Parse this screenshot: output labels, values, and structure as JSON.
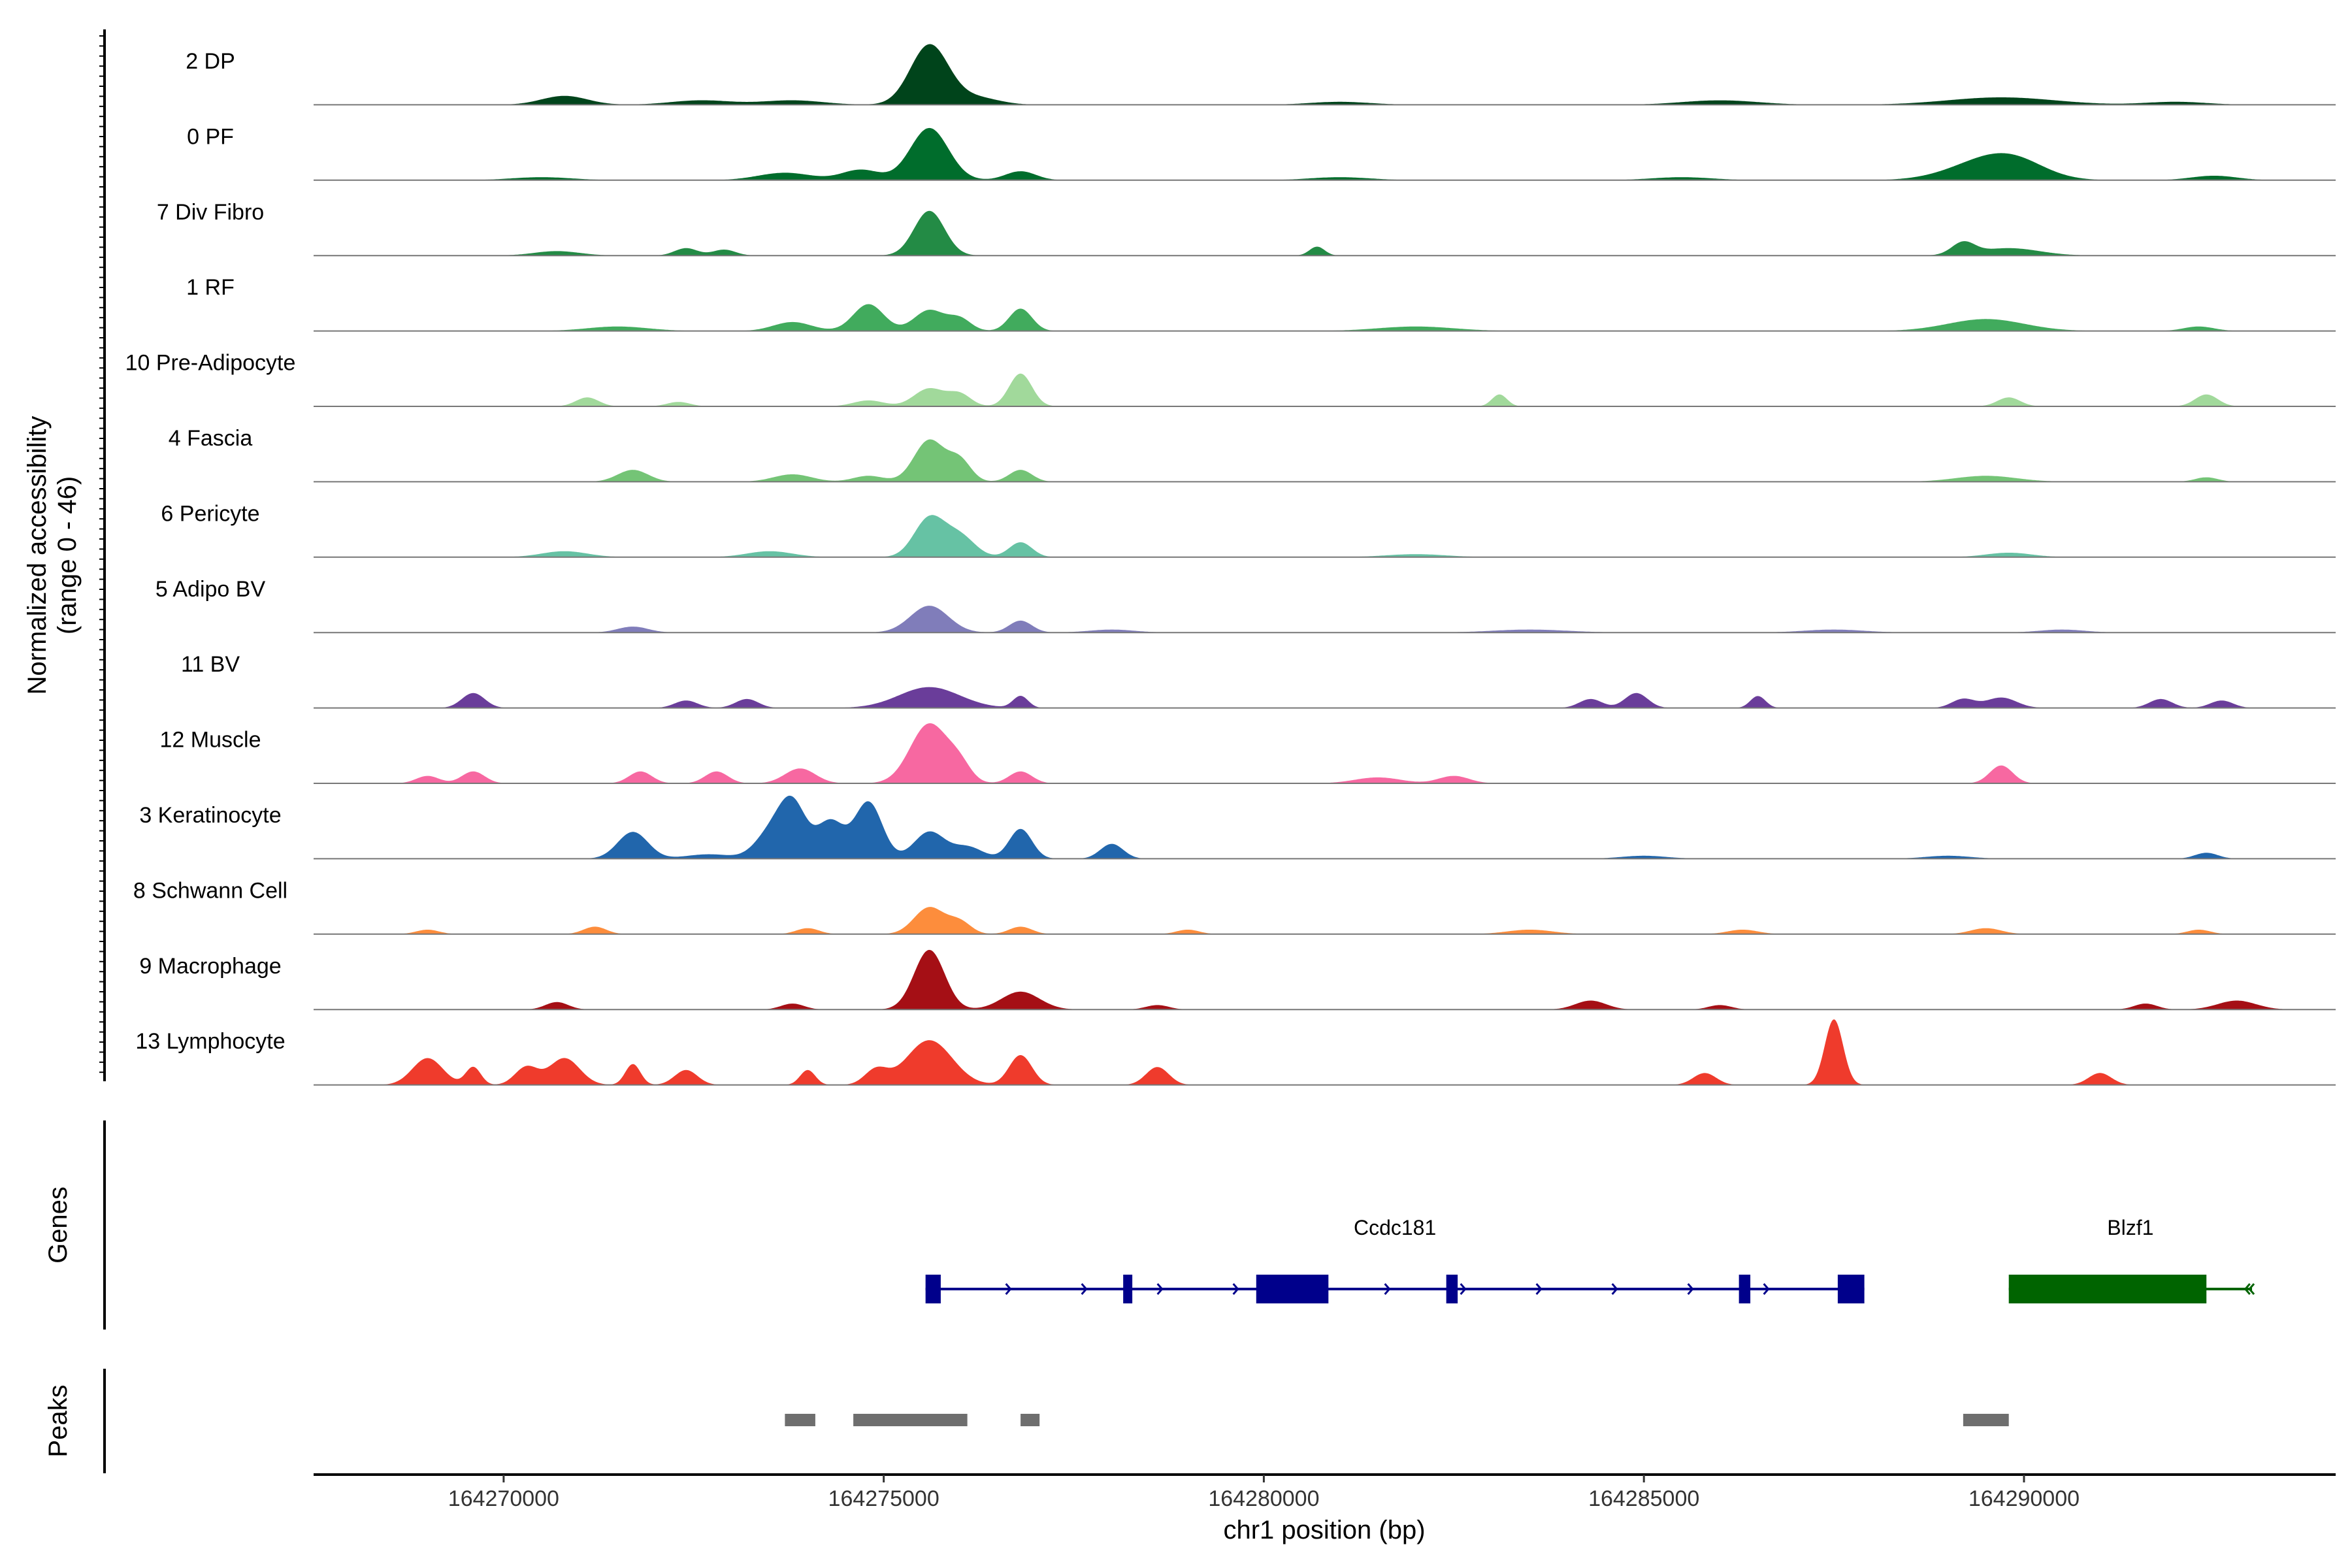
{
  "chart_data": {
    "type": "area",
    "title": "",
    "region": "chr1:164267500-164294100",
    "xlabel": "chr1 position (bp)",
    "ylabel": "Normalized accessibility",
    "ylabel_range": "(range 0 - 46)",
    "ylim": [
      0,
      46
    ],
    "xlim": [
      164267500,
      164294100
    ],
    "x_ticks": [
      164270000,
      164275000,
      164280000,
      164285000,
      164290000
    ],
    "x_tick_labels": [
      "164270000",
      "164275000",
      "164280000",
      "164285000",
      "164290000"
    ],
    "series": [
      {
        "name": "2 DP",
        "color": "#00441b",
        "peaks": [
          [
            164270800,
            6,
            300
          ],
          [
            164272600,
            3,
            400
          ],
          [
            164273800,
            3,
            400
          ],
          [
            164275600,
            40,
            250
          ],
          [
            164276200,
            5,
            300
          ],
          [
            164281000,
            2,
            400
          ],
          [
            164286000,
            3,
            500
          ],
          [
            164289700,
            5,
            700
          ],
          [
            164292000,
            2,
            400
          ]
        ]
      },
      {
        "name": "0 PF",
        "color": "#006d2c",
        "peaks": [
          [
            164270500,
            2,
            400
          ],
          [
            164273700,
            5,
            350
          ],
          [
            164274700,
            7,
            250
          ],
          [
            164275600,
            35,
            250
          ],
          [
            164276800,
            6,
            200
          ],
          [
            164281000,
            2,
            400
          ],
          [
            164285500,
            2,
            400
          ],
          [
            164289500,
            12,
            500
          ],
          [
            164289900,
            8,
            400
          ],
          [
            164292500,
            3,
            300
          ]
        ]
      },
      {
        "name": "7 Div Fibro",
        "color": "#238b45",
        "peaks": [
          [
            164270700,
            3,
            300
          ],
          [
            164272400,
            5,
            150
          ],
          [
            164272900,
            4,
            150
          ],
          [
            164275600,
            30,
            200
          ],
          [
            164280700,
            6,
            100
          ],
          [
            164289200,
            8,
            150
          ],
          [
            164289800,
            5,
            400
          ]
        ]
      },
      {
        "name": "1 RF",
        "color": "#41ab5d",
        "peaks": [
          [
            164271500,
            3,
            400
          ],
          [
            164273800,
            6,
            250
          ],
          [
            164274800,
            18,
            200
          ],
          [
            164275600,
            14,
            200
          ],
          [
            164276000,
            8,
            150
          ],
          [
            164276800,
            15,
            150
          ],
          [
            164282000,
            3,
            500
          ],
          [
            164289500,
            8,
            500
          ],
          [
            164292300,
            3,
            200
          ]
        ]
      },
      {
        "name": "10 Pre-Adipocyte",
        "color": "#a1d99b",
        "peaks": [
          [
            164271100,
            6,
            150
          ],
          [
            164272300,
            3,
            150
          ],
          [
            164274800,
            4,
            200
          ],
          [
            164275600,
            12,
            200
          ],
          [
            164276000,
            8,
            150
          ],
          [
            164276800,
            22,
            150
          ],
          [
            164283100,
            8,
            100
          ],
          [
            164289800,
            6,
            150
          ],
          [
            164292400,
            8,
            150
          ]
        ]
      },
      {
        "name": "4 Fascia",
        "color": "#74c476",
        "peaks": [
          [
            164271700,
            8,
            200
          ],
          [
            164273800,
            5,
            250
          ],
          [
            164274800,
            4,
            200
          ],
          [
            164275600,
            28,
            200
          ],
          [
            164276000,
            14,
            150
          ],
          [
            164276800,
            8,
            150
          ],
          [
            164289500,
            4,
            400
          ],
          [
            164292400,
            3,
            150
          ]
        ]
      },
      {
        "name": "6 Pericyte",
        "color": "#66c2a4",
        "peaks": [
          [
            164270800,
            4,
            300
          ],
          [
            164273500,
            4,
            300
          ],
          [
            164275600,
            26,
            200
          ],
          [
            164276000,
            14,
            200
          ],
          [
            164276800,
            10,
            150
          ],
          [
            164282000,
            2,
            400
          ],
          [
            164289800,
            3,
            300
          ]
        ]
      },
      {
        "name": "5 Adipo BV",
        "color": "#807dba",
        "peaks": [
          [
            164271700,
            4,
            200
          ],
          [
            164275600,
            18,
            250
          ],
          [
            164276800,
            8,
            150
          ],
          [
            164278000,
            2,
            300
          ],
          [
            164283500,
            2,
            500
          ],
          [
            164287500,
            2,
            400
          ],
          [
            164290500,
            2,
            300
          ]
        ]
      },
      {
        "name": "11 BV",
        "color": "#6a3d9a",
        "peaks": [
          [
            164269600,
            10,
            150
          ],
          [
            164272400,
            5,
            150
          ],
          [
            164273200,
            6,
            150
          ],
          [
            164275600,
            14,
            400
          ],
          [
            164276800,
            8,
            100
          ],
          [
            164284300,
            6,
            150
          ],
          [
            164284900,
            10,
            150
          ],
          [
            164286500,
            8,
            100
          ],
          [
            164289200,
            6,
            150
          ],
          [
            164289700,
            7,
            200
          ],
          [
            164291800,
            6,
            150
          ],
          [
            164292600,
            5,
            150
          ]
        ]
      },
      {
        "name": "12 Muscle",
        "color": "#f768a1",
        "peaks": [
          [
            164269000,
            5,
            150
          ],
          [
            164269600,
            8,
            150
          ],
          [
            164271800,
            8,
            150
          ],
          [
            164272800,
            8,
            150
          ],
          [
            164273900,
            10,
            200
          ],
          [
            164275600,
            40,
            250
          ],
          [
            164276000,
            10,
            150
          ],
          [
            164276800,
            8,
            150
          ],
          [
            164281500,
            4,
            300
          ],
          [
            164282500,
            5,
            200
          ],
          [
            164289700,
            12,
            150
          ]
        ]
      },
      {
        "name": "3 Keratinocyte",
        "color": "#2166ac",
        "peaks": [
          [
            164271700,
            18,
            200
          ],
          [
            164272700,
            3,
            300
          ],
          [
            164273500,
            16,
            200
          ],
          [
            164273800,
            36,
            180
          ],
          [
            164274300,
            25,
            180
          ],
          [
            164274800,
            38,
            180
          ],
          [
            164275600,
            18,
            200
          ],
          [
            164276100,
            8,
            200
          ],
          [
            164276800,
            20,
            150
          ],
          [
            164278000,
            10,
            150
          ],
          [
            164285000,
            2,
            300
          ],
          [
            164289000,
            2,
            300
          ],
          [
            164292400,
            4,
            150
          ]
        ]
      },
      {
        "name": "8 Schwann Cell",
        "color": "#fd8d3c",
        "peaks": [
          [
            164269000,
            3,
            150
          ],
          [
            164271200,
            5,
            150
          ],
          [
            164274000,
            4,
            150
          ],
          [
            164275600,
            18,
            200
          ],
          [
            164276000,
            8,
            150
          ],
          [
            164276800,
            5,
            150
          ],
          [
            164279000,
            3,
            150
          ],
          [
            164283500,
            3,
            300
          ],
          [
            164286300,
            3,
            200
          ],
          [
            164289500,
            4,
            200
          ],
          [
            164292300,
            3,
            150
          ]
        ]
      },
      {
        "name": "9 Macrophage",
        "color": "#a50f15",
        "peaks": [
          [
            164270700,
            5,
            150
          ],
          [
            164273800,
            4,
            150
          ],
          [
            164275600,
            40,
            200
          ],
          [
            164276800,
            12,
            250
          ],
          [
            164278600,
            3,
            150
          ],
          [
            164284300,
            6,
            200
          ],
          [
            164286000,
            3,
            150
          ],
          [
            164291600,
            4,
            150
          ],
          [
            164292800,
            6,
            250
          ]
        ]
      },
      {
        "name": "13 Lymphocyte",
        "color": "#ef3b2c",
        "peaks": [
          [
            164269000,
            18,
            200
          ],
          [
            164269600,
            12,
            100
          ],
          [
            164270300,
            12,
            150
          ],
          [
            164270800,
            18,
            200
          ],
          [
            164271700,
            14,
            100
          ],
          [
            164272400,
            10,
            150
          ],
          [
            164274000,
            10,
            100
          ],
          [
            164274900,
            10,
            150
          ],
          [
            164275600,
            30,
            300
          ],
          [
            164276800,
            20,
            150
          ],
          [
            164278600,
            12,
            150
          ],
          [
            164285800,
            8,
            150
          ],
          [
            164287500,
            44,
            120
          ],
          [
            164291000,
            8,
            150
          ]
        ]
      }
    ],
    "genes": [
      {
        "name": "Ccdc181",
        "start": 164275550,
        "end": 164287900,
        "strand": "+",
        "color": "#00008b",
        "exons": [
          [
            164275550,
            164275750
          ],
          [
            164278150,
            164278270
          ],
          [
            164279900,
            164280850
          ],
          [
            164282400,
            164282550
          ],
          [
            164286250,
            164286400
          ],
          [
            164287550,
            164287900
          ]
        ]
      },
      {
        "name": "Blzf1",
        "start": 164289800,
        "end": 164293000,
        "strand": "-",
        "color": "#006400",
        "exons": [
          [
            164289800,
            164292400
          ]
        ]
      }
    ],
    "peaks_track": [
      [
        164273700,
        164274100
      ],
      [
        164274600,
        164276100
      ],
      [
        164276800,
        164277050
      ],
      [
        164289200,
        164289800
      ]
    ],
    "track_titles": {
      "genes": "Genes",
      "peaks": "Peaks"
    }
  }
}
